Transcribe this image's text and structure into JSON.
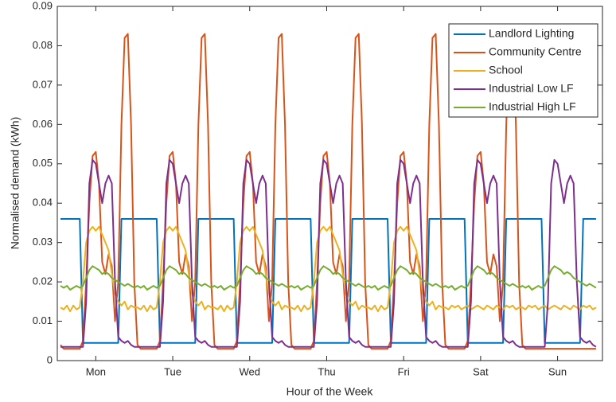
{
  "chart_data": {
    "type": "line",
    "xlabel": "Hour of the Week",
    "ylabel": "Normalised demand (kWh)",
    "xlim": [
      0,
      170
    ],
    "ylim": [
      0,
      0.09
    ],
    "xticks": [
      {
        "value": 12,
        "label": "Mon"
      },
      {
        "value": 36,
        "label": "Tue"
      },
      {
        "value": 60,
        "label": "Wed"
      },
      {
        "value": 84,
        "label": "Thu"
      },
      {
        "value": 108,
        "label": "Fri"
      },
      {
        "value": 132,
        "label": "Sat"
      },
      {
        "value": 156,
        "label": "Sun"
      }
    ],
    "yticks": [
      0,
      0.01,
      0.02,
      0.03,
      0.04,
      0.05,
      0.06,
      0.07,
      0.08,
      0.09
    ],
    "legend": "upper right",
    "x": [
      1,
      2,
      3,
      4,
      5,
      6,
      7,
      8,
      9,
      10,
      11,
      12,
      13,
      14,
      15,
      16,
      17,
      18,
      19,
      20,
      21,
      22,
      23,
      24,
      25,
      26,
      27,
      28,
      29,
      30,
      31,
      32,
      33,
      34,
      35,
      36,
      37,
      38,
      39,
      40,
      41,
      42,
      43,
      44,
      45,
      46,
      47,
      48,
      49,
      50,
      51,
      52,
      53,
      54,
      55,
      56,
      57,
      58,
      59,
      60,
      61,
      62,
      63,
      64,
      65,
      66,
      67,
      68,
      69,
      70,
      71,
      72,
      73,
      74,
      75,
      76,
      77,
      78,
      79,
      80,
      81,
      82,
      83,
      84,
      85,
      86,
      87,
      88,
      89,
      90,
      91,
      92,
      93,
      94,
      95,
      96,
      97,
      98,
      99,
      100,
      101,
      102,
      103,
      104,
      105,
      106,
      107,
      108,
      109,
      110,
      111,
      112,
      113,
      114,
      115,
      116,
      117,
      118,
      119,
      120,
      121,
      122,
      123,
      124,
      125,
      126,
      127,
      128,
      129,
      130,
      131,
      132,
      133,
      134,
      135,
      136,
      137,
      138,
      139,
      140,
      141,
      142,
      143,
      144,
      145,
      146,
      147,
      148,
      149,
      150,
      151,
      152,
      153,
      154,
      155,
      156,
      157,
      158,
      159,
      160,
      161,
      162,
      163,
      164,
      165,
      166,
      167,
      168
    ],
    "series": [
      {
        "name": "Landlord Lighting",
        "color": "#0072BD",
        "values": [
          0.036,
          0.036,
          0.036,
          0.036,
          0.036,
          0.036,
          0.036,
          0.0045,
          0.0045,
          0.0045,
          0.0045,
          0.0045,
          0.0045,
          0.0045,
          0.0045,
          0.0045,
          0.0045,
          0.0045,
          0.0045,
          0.036,
          0.036,
          0.036,
          0.036,
          0.036,
          0.036,
          0.036,
          0.036,
          0.036,
          0.036,
          0.036,
          0.036,
          0.0045,
          0.0045,
          0.0045,
          0.0045,
          0.0045,
          0.0045,
          0.0045,
          0.0045,
          0.0045,
          0.0045,
          0.0045,
          0.0045,
          0.036,
          0.036,
          0.036,
          0.036,
          0.036,
          0.036,
          0.036,
          0.036,
          0.036,
          0.036,
          0.036,
          0.036,
          0.0045,
          0.0045,
          0.0045,
          0.0045,
          0.0045,
          0.0045,
          0.0045,
          0.0045,
          0.0045,
          0.0045,
          0.0045,
          0.0045,
          0.036,
          0.036,
          0.036,
          0.036,
          0.036,
          0.036,
          0.036,
          0.036,
          0.036,
          0.036,
          0.036,
          0.036,
          0.0045,
          0.0045,
          0.0045,
          0.0045,
          0.0045,
          0.0045,
          0.0045,
          0.0045,
          0.0045,
          0.0045,
          0.0045,
          0.0045,
          0.036,
          0.036,
          0.036,
          0.036,
          0.036,
          0.036,
          0.036,
          0.036,
          0.036,
          0.036,
          0.036,
          0.036,
          0.0045,
          0.0045,
          0.0045,
          0.0045,
          0.0045,
          0.0045,
          0.0045,
          0.0045,
          0.0045,
          0.0045,
          0.0045,
          0.0045,
          0.036,
          0.036,
          0.036,
          0.036,
          0.036,
          0.036,
          0.036,
          0.036,
          0.036,
          0.036,
          0.036,
          0.036,
          0.0045,
          0.0045,
          0.0045,
          0.0045,
          0.0045,
          0.0045,
          0.0045,
          0.0045,
          0.0045,
          0.0045,
          0.0045,
          0.0045,
          0.036,
          0.036,
          0.036,
          0.036,
          0.036,
          0.036,
          0.036,
          0.036,
          0.036,
          0.036,
          0.036,
          0.036,
          0.0045,
          0.0045,
          0.0045,
          0.0045,
          0.0045,
          0.0045,
          0.0045,
          0.0045,
          0.0045,
          0.0045,
          0.0045,
          0.0045,
          0.036,
          0.036,
          0.036,
          0.036,
          0.036
        ]
      },
      {
        "name": "Community Centre",
        "color": "#D95319",
        "values": [
          0.004,
          0.003,
          0.003,
          0.003,
          0.003,
          0.003,
          0.003,
          0.005,
          0.02,
          0.04,
          0.052,
          0.053,
          0.045,
          0.025,
          0.022,
          0.027,
          0.024,
          0.01,
          0.02,
          0.06,
          0.082,
          0.083,
          0.06,
          0.02,
          0.004,
          0.003,
          0.003,
          0.003,
          0.003,
          0.003,
          0.003,
          0.005,
          0.02,
          0.04,
          0.052,
          0.053,
          0.045,
          0.025,
          0.022,
          0.027,
          0.024,
          0.01,
          0.02,
          0.06,
          0.082,
          0.083,
          0.06,
          0.02,
          0.004,
          0.003,
          0.003,
          0.003,
          0.003,
          0.003,
          0.003,
          0.005,
          0.02,
          0.04,
          0.052,
          0.053,
          0.045,
          0.025,
          0.022,
          0.027,
          0.024,
          0.01,
          0.02,
          0.06,
          0.082,
          0.083,
          0.06,
          0.02,
          0.004,
          0.003,
          0.003,
          0.003,
          0.003,
          0.003,
          0.003,
          0.005,
          0.02,
          0.04,
          0.052,
          0.053,
          0.045,
          0.025,
          0.022,
          0.027,
          0.024,
          0.01,
          0.02,
          0.06,
          0.082,
          0.083,
          0.06,
          0.02,
          0.004,
          0.003,
          0.003,
          0.003,
          0.003,
          0.003,
          0.003,
          0.005,
          0.02,
          0.04,
          0.052,
          0.053,
          0.045,
          0.025,
          0.022,
          0.027,
          0.024,
          0.01,
          0.02,
          0.06,
          0.082,
          0.083,
          0.06,
          0.02,
          0.004,
          0.003,
          0.003,
          0.003,
          0.003,
          0.003,
          0.003,
          0.005,
          0.02,
          0.04,
          0.052,
          0.053,
          0.045,
          0.025,
          0.022,
          0.027,
          0.024,
          0.01,
          0.02,
          0.06,
          0.082,
          0.083,
          0.06,
          0.02,
          0.004,
          0.003,
          0.003,
          0.003,
          0.003,
          0.003,
          0.003,
          0.003,
          0.003,
          0.003,
          0.003,
          0.003,
          0.003,
          0.003,
          0.003,
          0.003,
          0.003,
          0.003,
          0.003,
          0.003,
          0.003,
          0.003,
          0.003,
          0.003
        ]
      },
      {
        "name": "School",
        "color": "#EDB120",
        "values": [
          0.0135,
          0.013,
          0.014,
          0.0125,
          0.014,
          0.013,
          0.0135,
          0.02,
          0.03,
          0.033,
          0.034,
          0.033,
          0.034,
          0.032,
          0.03,
          0.028,
          0.022,
          0.017,
          0.015,
          0.014,
          0.015,
          0.013,
          0.014,
          0.0135,
          0.0135,
          0.013,
          0.014,
          0.0125,
          0.014,
          0.013,
          0.0135,
          0.02,
          0.03,
          0.033,
          0.034,
          0.033,
          0.034,
          0.032,
          0.03,
          0.028,
          0.022,
          0.017,
          0.015,
          0.014,
          0.015,
          0.013,
          0.014,
          0.0135,
          0.0135,
          0.013,
          0.014,
          0.0125,
          0.014,
          0.013,
          0.0135,
          0.02,
          0.03,
          0.033,
          0.034,
          0.033,
          0.034,
          0.032,
          0.03,
          0.028,
          0.022,
          0.017,
          0.015,
          0.014,
          0.015,
          0.013,
          0.014,
          0.0135,
          0.0135,
          0.013,
          0.014,
          0.0125,
          0.014,
          0.013,
          0.0135,
          0.02,
          0.03,
          0.033,
          0.034,
          0.033,
          0.034,
          0.032,
          0.03,
          0.028,
          0.022,
          0.017,
          0.015,
          0.014,
          0.015,
          0.013,
          0.014,
          0.0135,
          0.0135,
          0.013,
          0.014,
          0.0125,
          0.014,
          0.013,
          0.0135,
          0.02,
          0.03,
          0.033,
          0.034,
          0.033,
          0.034,
          0.032,
          0.03,
          0.028,
          0.022,
          0.017,
          0.015,
          0.014,
          0.015,
          0.013,
          0.014,
          0.0135,
          0.0135,
          0.013,
          0.014,
          0.0135,
          0.014,
          0.013,
          0.0135,
          0.014,
          0.013,
          0.0135,
          0.014,
          0.0135,
          0.013,
          0.014,
          0.0135,
          0.013,
          0.014,
          0.0135,
          0.013,
          0.014,
          0.0135,
          0.014,
          0.013,
          0.0135,
          0.0135,
          0.013,
          0.014,
          0.0135,
          0.014,
          0.013,
          0.0135,
          0.014,
          0.013,
          0.0135,
          0.014,
          0.0135,
          0.013,
          0.014,
          0.0135,
          0.013,
          0.014,
          0.0135,
          0.013,
          0.014,
          0.0135,
          0.014,
          0.013,
          0.0135
        ]
      },
      {
        "name": "Industrial Low LF",
        "color": "#7E2F8E",
        "values": [
          0.0035,
          0.0035,
          0.0035,
          0.0035,
          0.0035,
          0.0035,
          0.0035,
          0.0035,
          0.015,
          0.045,
          0.051,
          0.05,
          0.045,
          0.04,
          0.045,
          0.047,
          0.045,
          0.02,
          0.006,
          0.005,
          0.0045,
          0.005,
          0.004,
          0.0035,
          0.0035,
          0.0035,
          0.0035,
          0.0035,
          0.0035,
          0.0035,
          0.0035,
          0.0035,
          0.015,
          0.045,
          0.051,
          0.05,
          0.045,
          0.04,
          0.045,
          0.047,
          0.045,
          0.02,
          0.006,
          0.005,
          0.0045,
          0.005,
          0.004,
          0.0035,
          0.0035,
          0.0035,
          0.0035,
          0.0035,
          0.0035,
          0.0035,
          0.0035,
          0.0035,
          0.015,
          0.045,
          0.051,
          0.05,
          0.045,
          0.04,
          0.045,
          0.047,
          0.045,
          0.02,
          0.006,
          0.005,
          0.0045,
          0.005,
          0.004,
          0.0035,
          0.0035,
          0.0035,
          0.0035,
          0.0035,
          0.0035,
          0.0035,
          0.0035,
          0.0035,
          0.015,
          0.045,
          0.051,
          0.05,
          0.045,
          0.04,
          0.045,
          0.047,
          0.045,
          0.02,
          0.006,
          0.005,
          0.0045,
          0.005,
          0.004,
          0.0035,
          0.0035,
          0.0035,
          0.0035,
          0.0035,
          0.0035,
          0.0035,
          0.0035,
          0.0035,
          0.015,
          0.045,
          0.051,
          0.05,
          0.045,
          0.04,
          0.045,
          0.047,
          0.045,
          0.02,
          0.006,
          0.005,
          0.0045,
          0.005,
          0.004,
          0.0035,
          0.0035,
          0.0035,
          0.0035,
          0.0035,
          0.0035,
          0.0035,
          0.0035,
          0.0035,
          0.015,
          0.045,
          0.051,
          0.05,
          0.045,
          0.04,
          0.045,
          0.047,
          0.045,
          0.02,
          0.006,
          0.005,
          0.0045,
          0.005,
          0.004,
          0.0035,
          0.0035,
          0.0035,
          0.0035,
          0.0035,
          0.0035,
          0.0035,
          0.0035,
          0.0035,
          0.015,
          0.045,
          0.051,
          0.05,
          0.045,
          0.04,
          0.045,
          0.047,
          0.045,
          0.02,
          0.006,
          0.005,
          0.0045,
          0.005,
          0.004,
          0.0035
        ]
      },
      {
        "name": "Industrial High LF",
        "color": "#77AC30",
        "values": [
          0.019,
          0.0185,
          0.019,
          0.018,
          0.0185,
          0.019,
          0.0185,
          0.019,
          0.021,
          0.023,
          0.024,
          0.0235,
          0.023,
          0.022,
          0.0225,
          0.022,
          0.021,
          0.0205,
          0.02,
          0.0195,
          0.019,
          0.0195,
          0.019,
          0.0185,
          0.019,
          0.0185,
          0.019,
          0.018,
          0.0185,
          0.019,
          0.0185,
          0.019,
          0.021,
          0.023,
          0.024,
          0.0235,
          0.023,
          0.022,
          0.0225,
          0.022,
          0.021,
          0.0205,
          0.02,
          0.0195,
          0.019,
          0.0195,
          0.019,
          0.0185,
          0.019,
          0.0185,
          0.019,
          0.018,
          0.0185,
          0.019,
          0.0185,
          0.019,
          0.021,
          0.023,
          0.024,
          0.0235,
          0.023,
          0.022,
          0.0225,
          0.022,
          0.021,
          0.0205,
          0.02,
          0.0195,
          0.019,
          0.0195,
          0.019,
          0.0185,
          0.019,
          0.0185,
          0.019,
          0.018,
          0.0185,
          0.019,
          0.0185,
          0.019,
          0.021,
          0.023,
          0.024,
          0.0235,
          0.023,
          0.022,
          0.0225,
          0.022,
          0.021,
          0.0205,
          0.02,
          0.0195,
          0.019,
          0.0195,
          0.019,
          0.0185,
          0.019,
          0.0185,
          0.019,
          0.018,
          0.0185,
          0.019,
          0.0185,
          0.019,
          0.021,
          0.023,
          0.024,
          0.0235,
          0.023,
          0.022,
          0.0225,
          0.022,
          0.021,
          0.0205,
          0.02,
          0.0195,
          0.019,
          0.0195,
          0.019,
          0.0185,
          0.019,
          0.0185,
          0.019,
          0.018,
          0.0185,
          0.019,
          0.0185,
          0.019,
          0.021,
          0.023,
          0.024,
          0.0235,
          0.023,
          0.022,
          0.0225,
          0.022,
          0.021,
          0.0205,
          0.02,
          0.0195,
          0.019,
          0.0195,
          0.019,
          0.0185,
          0.019,
          0.0185,
          0.019,
          0.018,
          0.0185,
          0.019,
          0.0185,
          0.019,
          0.021,
          0.023,
          0.024,
          0.0235,
          0.023,
          0.022,
          0.0225,
          0.022,
          0.021,
          0.0205,
          0.02,
          0.0195,
          0.019,
          0.0195,
          0.019,
          0.0185
        ]
      }
    ]
  }
}
